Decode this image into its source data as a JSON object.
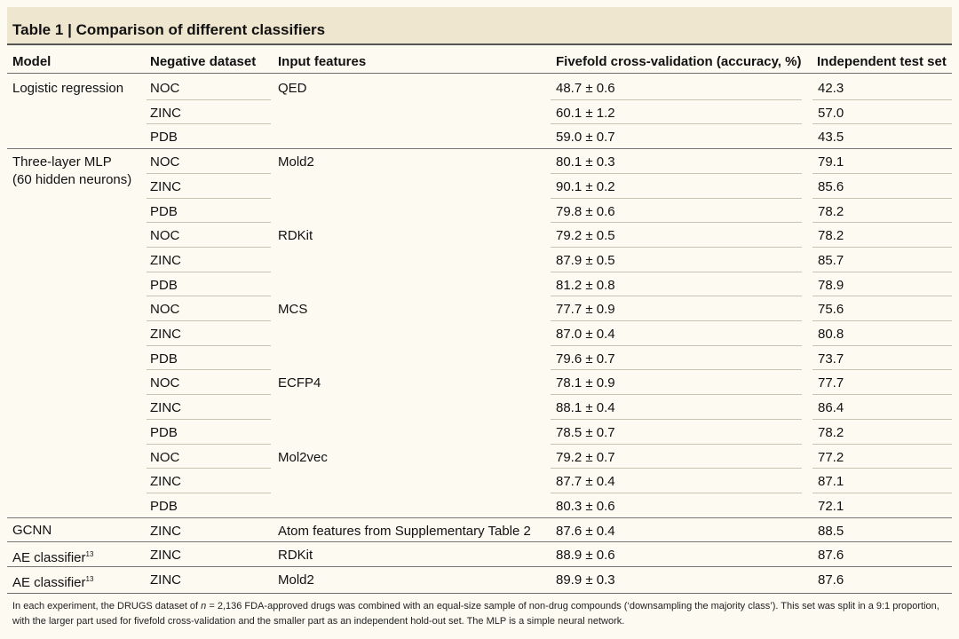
{
  "table": {
    "title_number": "Table 1",
    "title_separator": "|",
    "title_text": "Comparison of different classifiers",
    "columns": [
      "Model",
      "Negative dataset",
      "Input features",
      "Fivefold cross-validation (accuracy, %)",
      "Independent test set"
    ],
    "rows": [
      {
        "dataset": "NOC",
        "features": "QED",
        "cv": "48.7 ± 0.6",
        "test": "42.3"
      },
      {
        "dataset": "ZINC",
        "features": "",
        "cv": "60.1 ± 1.2",
        "test": "57.0"
      },
      {
        "dataset": "PDB",
        "features": "",
        "cv": "59.0 ± 0.7",
        "test": "43.5"
      },
      {
        "dataset": "NOC",
        "features": "Mold2",
        "cv": "80.1 ± 0.3",
        "test": "79.1"
      },
      {
        "dataset": "ZINC",
        "features": "",
        "cv": "90.1 ± 0.2",
        "test": "85.6"
      },
      {
        "dataset": "PDB",
        "features": "",
        "cv": "79.8 ± 0.6",
        "test": "78.2"
      },
      {
        "dataset": "NOC",
        "features": "RDKit",
        "cv": "79.2 ± 0.5",
        "test": "78.2"
      },
      {
        "dataset": "ZINC",
        "features": "",
        "cv": "87.9 ± 0.5",
        "test": "85.7"
      },
      {
        "dataset": "PDB",
        "features": "",
        "cv": "81.2 ± 0.8",
        "test": "78.9"
      },
      {
        "dataset": "NOC",
        "features": "MCS",
        "cv": "77.7 ± 0.9",
        "test": "75.6"
      },
      {
        "dataset": "ZINC",
        "features": "",
        "cv": "87.0 ± 0.4",
        "test": "80.8"
      },
      {
        "dataset": "PDB",
        "features": "",
        "cv": "79.6 ± 0.7",
        "test": "73.7"
      },
      {
        "dataset": "NOC",
        "features": "ECFP4",
        "cv": "78.1 ± 0.9",
        "test": "77.7"
      },
      {
        "dataset": "ZINC",
        "features": "",
        "cv": "88.1 ± 0.4",
        "test": "86.4"
      },
      {
        "dataset": "PDB",
        "features": "",
        "cv": "78.5 ± 0.7",
        "test": "78.2"
      },
      {
        "dataset": "NOC",
        "features": "Mol2vec",
        "cv": "79.2 ± 0.7",
        "test": "77.2"
      },
      {
        "dataset": "ZINC",
        "features": "",
        "cv": "87.7 ± 0.4",
        "test": "87.1"
      },
      {
        "dataset": "PDB",
        "features": "",
        "cv": "80.3 ± 0.6",
        "test": "72.1"
      },
      {
        "dataset": "ZINC",
        "features": "Atom features from Supplementary Table 2",
        "cv": "87.6 ± 0.4",
        "test": "88.5"
      },
      {
        "dataset": "ZINC",
        "features": "RDKit",
        "cv": "88.9 ± 0.6",
        "test": "87.6"
      },
      {
        "dataset": "ZINC",
        "features": "Mold2",
        "cv": "89.9 ± 0.3",
        "test": "87.6"
      }
    ],
    "models": {
      "logistic": "Logistic regression",
      "mlp_line1": "Three-layer MLP",
      "mlp_line2": "(60 hidden neurons)",
      "gcnn": "GCNN",
      "ae1": "AE classifier",
      "ae1_ref": "13",
      "ae2": "AE classifier",
      "ae2_ref": "13"
    },
    "footnote_part1": "In each experiment, the DRUGS dataset of ",
    "footnote_n": "n",
    "footnote_part2": " = 2,136 FDA-approved drugs was combined with an equal-size sample of non-drug compounds (‘downsampling the majority class’). This set was split in a 9:1 proportion, with the larger part used for fivefold cross-validation and the smaller part as an independent hold-out set. The MLP is a simple neural network."
  }
}
